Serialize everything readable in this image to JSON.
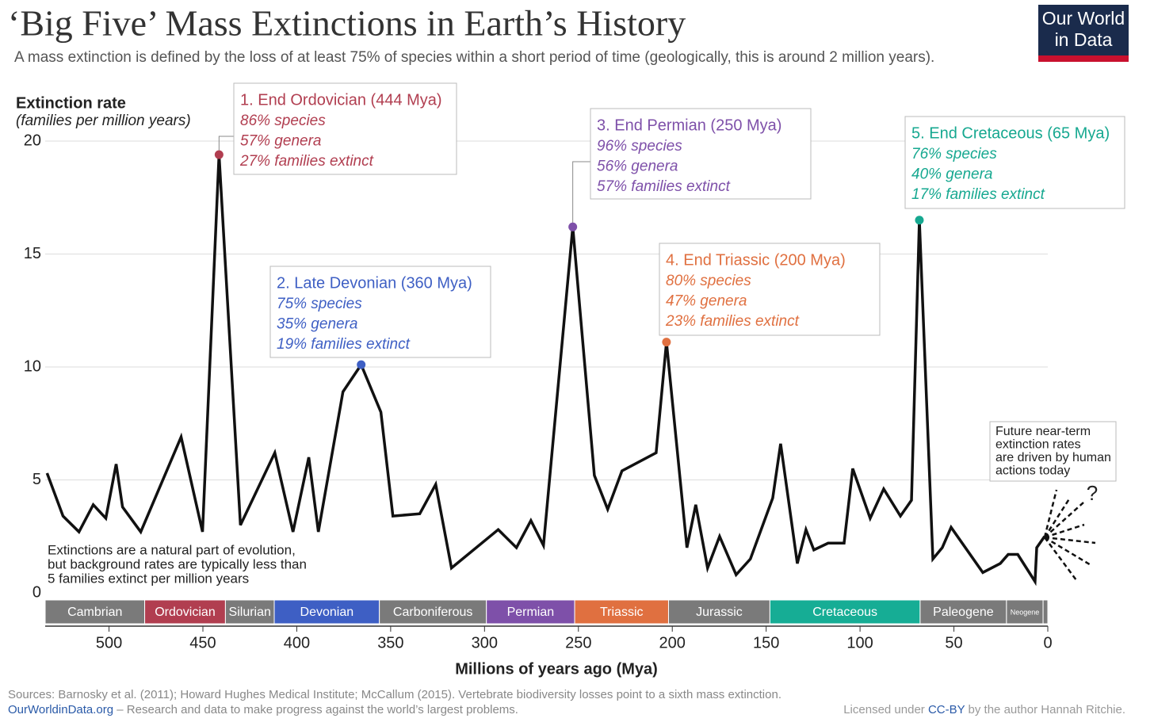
{
  "chart_data": {
    "type": "line",
    "title": "‘Big Five’ Mass Extinctions in Earth’s History",
    "subtitle": "A mass extinction is defined by the loss of at least 75% of species within a short period of time (geologically, this is around 2 million years).",
    "ylabel": "Extinction rate",
    "ylabel_note": "(families per million years)",
    "xlabel": "Millions of years ago (Mya)",
    "color": "#111111",
    "x": [
      533,
      524.5,
      516,
      508.4,
      501.7,
      496.2,
      492.8,
      483.1,
      461.6,
      450.2,
      441.4,
      430,
      411.7,
      402,
      393.6,
      388.5,
      375.4,
      365.7,
      355.2,
      348.8,
      334.5,
      326,
      317.6,
      292.7,
      283,
      275.3,
      268.6,
      253,
      241.5,
      234.4,
      226.8,
      208.6,
      203.1,
      192.2,
      187.5,
      181.2,
      174.8,
      166,
      158.4,
      146.5,
      142.3,
      133.4,
      128.8,
      124.6,
      117,
      108.5,
      103.9,
      94.6,
      87.4,
      78.5,
      72.6,
      68.4,
      61.2,
      56.2,
      51.5,
      34.6,
      25.3,
      21.1,
      16,
      6.8,
      5.9,
      1.7
    ],
    "values": [
      5.3,
      3.4,
      2.7,
      3.9,
      3.3,
      5.7,
      3.8,
      2.7,
      6.9,
      2.7,
      19.4,
      3.0,
      6.2,
      2.7,
      6.0,
      2.7,
      8.9,
      10.1,
      8.0,
      3.4,
      3.5,
      4.8,
      1.1,
      2.8,
      2.0,
      3.2,
      2.1,
      16.2,
      5.2,
      3.7,
      5.4,
      6.2,
      11.1,
      2.0,
      3.9,
      1.1,
      2.5,
      0.8,
      1.5,
      4.2,
      6.6,
      1.3,
      2.8,
      1.9,
      2.2,
      2.2,
      5.5,
      3.3,
      4.6,
      3.4,
      4.1,
      16.5,
      1.5,
      2.0,
      2.9,
      0.9,
      1.3,
      1.7,
      1.7,
      0.5,
      2.0,
      2.5
    ],
    "xlim": [
      534,
      0
    ],
    "ylim": [
      0,
      20
    ],
    "xticks": [
      500,
      450,
      400,
      350,
      300,
      250,
      200,
      150,
      100,
      50,
      0
    ],
    "yticks": [
      0,
      5,
      10,
      15,
      20
    ],
    "grid": true,
    "periods": [
      {
        "name": "Cambrian",
        "start": 534,
        "end": 481,
        "color": "#7a7a7a"
      },
      {
        "name": "Ordovician",
        "start": 481,
        "end": 438,
        "color": "#b13e50"
      },
      {
        "name": "Silurian",
        "start": 438,
        "end": 412,
        "color": "#7a7a7a"
      },
      {
        "name": "Devonian",
        "start": 412,
        "end": 356,
        "color": "#3e5fc4"
      },
      {
        "name": "Carboniferous",
        "start": 356,
        "end": 299,
        "color": "#7a7a7a"
      },
      {
        "name": "Permian",
        "start": 299,
        "end": 252,
        "color": "#7e50a9"
      },
      {
        "name": "Triassic",
        "start": 252,
        "end": 202,
        "color": "#e07040"
      },
      {
        "name": "Jurassic",
        "start": 202,
        "end": 148,
        "color": "#7a7a7a"
      },
      {
        "name": "Cretaceous",
        "start": 148,
        "end": 68,
        "color": "#16ad95"
      },
      {
        "name": "Paleogene",
        "start": 68,
        "end": 22,
        "color": "#7a7a7a"
      },
      {
        "name": "Neogene",
        "start": 22,
        "end": 2.5,
        "color": "#7a7a7a"
      },
      {
        "name": null,
        "start": 2.5,
        "end": 0,
        "color": "#7a7a7a"
      }
    ],
    "annotations": [
      {
        "title": "1. End Ordovician (444 Mya)",
        "lines": [
          "86% species",
          "57% genera",
          "27% families extinct"
        ],
        "color": "#b13e50"
      },
      {
        "title": "2. Late Devonian (360 Mya)",
        "lines": [
          "75% species",
          "35% genera",
          "19% families extinct"
        ],
        "color": "#3e5fc4"
      },
      {
        "title": "3. End Permian (250 Mya)",
        "lines": [
          "96% species",
          "56% genera",
          "57% families extinct"
        ],
        "color": "#7e50a9"
      },
      {
        "title": "4. End Triassic (200 Mya)",
        "lines": [
          "80% species",
          "47% genera",
          "23% families extinct"
        ],
        "color": "#e07040"
      },
      {
        "title": "5. End Cretaceous (65 Mya)",
        "lines": [
          "76% species",
          "40% genera",
          "17% families extinct"
        ],
        "color": "#16a890"
      }
    ],
    "background_note": [
      "Extinctions are a natural part of evolution,",
      "but background rates are typically less than",
      "5 families extinct per million years"
    ],
    "future_note": [
      "Future near-term",
      "extinction rates",
      "are driven by human",
      "actions today"
    ],
    "future_mark": "?"
  },
  "logo": [
    "Our World",
    "in Data"
  ],
  "footer": {
    "sources": "Sources: Barnosky et al. (2011); Howard Hughes Medical Institute; McCallum (2015). Vertebrate biodiversity losses point to a sixth mass extinction.",
    "site": "OurWorldinData.org",
    "tagline": " – Research and data to make progress against the world’s largest problems.",
    "license_pre": "Licensed under ",
    "license": "CC-BY",
    "license_post": " by the author Hannah Ritchie."
  }
}
